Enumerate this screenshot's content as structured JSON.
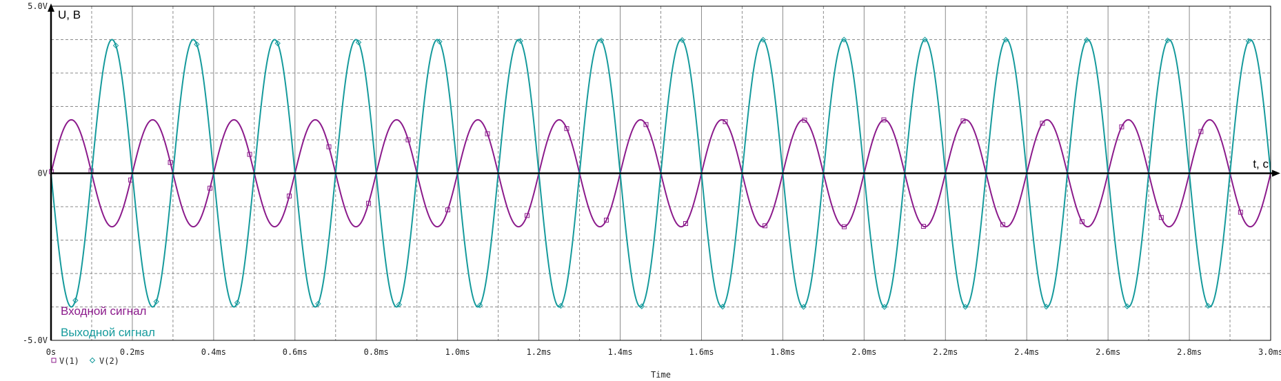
{
  "chart_data": {
    "type": "line",
    "title": "",
    "xlabel": "Time",
    "ylabel": "U, B",
    "x_axis_arrow_label": "t, c",
    "xlim": [
      0,
      3.0
    ],
    "ylim": [
      -5.0,
      5.0
    ],
    "x_ticks": [
      "0s",
      "0.2ms",
      "0.4ms",
      "0.6ms",
      "0.8ms",
      "1.0ms",
      "1.2ms",
      "1.4ms",
      "1.6ms",
      "1.8ms",
      "2.0ms",
      "2.2ms",
      "2.4ms",
      "2.6ms",
      "2.8ms",
      "3.0ms"
    ],
    "y_ticks": [
      "5.0V",
      "0V",
      "-5.0V"
    ],
    "grid": true,
    "legend": "bottom-left",
    "colors": {
      "v1": "#8b1a8b",
      "v2": "#159a9c",
      "grid": "#8a8a8a",
      "axis": "#000000"
    },
    "series": [
      {
        "name": "V(1)",
        "marker": "square",
        "amplitude": 1.6,
        "frequency_khz": 5.0,
        "phase_deg": 0
      },
      {
        "name": "V(2)",
        "marker": "diamond",
        "amplitude": 4.0,
        "frequency_khz": 5.0,
        "phase_deg": 180
      }
    ],
    "annotations": [
      {
        "text": "Входной сигнал",
        "series": "V(1)"
      },
      {
        "text": "Выходной сигнал",
        "series": "V(2)"
      }
    ]
  }
}
